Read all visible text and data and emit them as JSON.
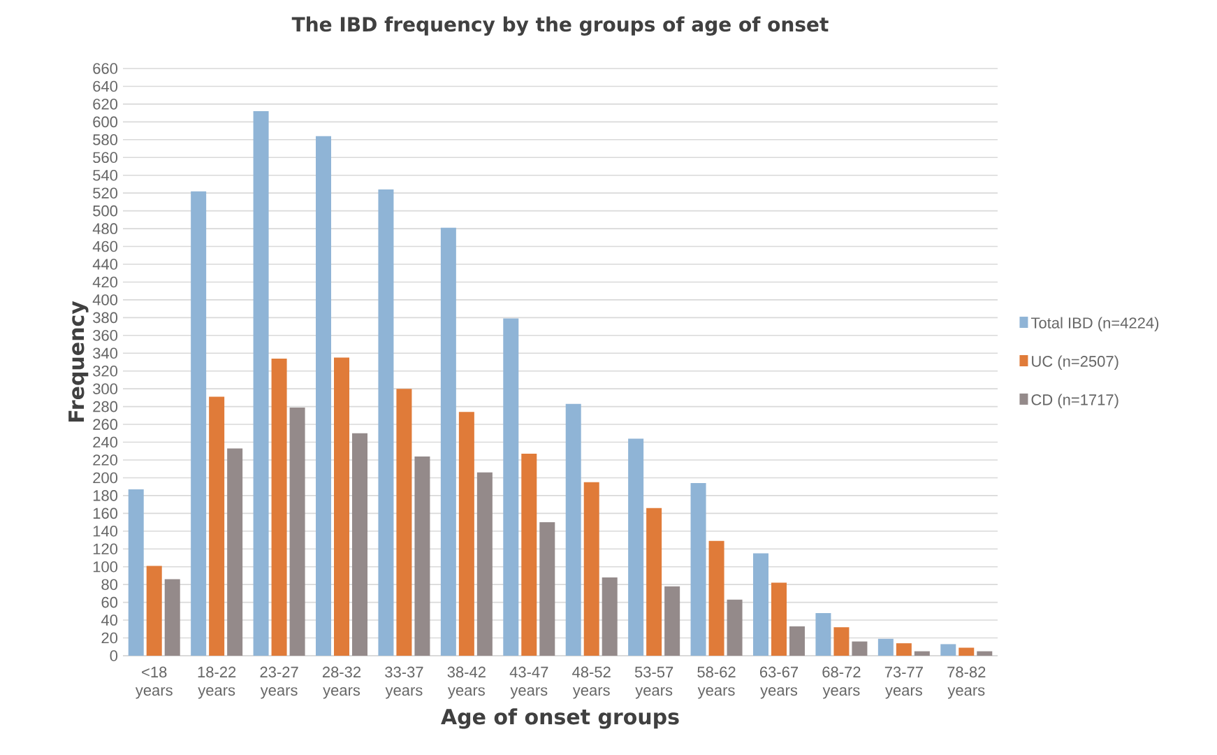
{
  "chart_data": {
    "type": "bar",
    "title": "The IBD frequency by the groups of age of onset",
    "xlabel": "Age of onset groups",
    "ylabel": "Frequency",
    "categories": [
      "<18 years",
      "18-22 years",
      "23-27 years",
      "28-32 years",
      "33-37 years",
      "38-42 years",
      "43-47 years",
      "48-52 years",
      "53-57 years",
      "58-62 years",
      "63-67 years",
      "68-72 years",
      "73-77 years",
      "78-82 years"
    ],
    "series": [
      {
        "name": "Total IBD (n=4224)",
        "color": "#8fb4d6",
        "values": [
          187,
          522,
          612,
          584,
          524,
          481,
          379,
          283,
          244,
          194,
          115,
          48,
          19,
          13
        ]
      },
      {
        "name": "UC (n=2507)",
        "color": "#e07b39",
        "values": [
          101,
          291,
          334,
          335,
          300,
          274,
          227,
          195,
          166,
          129,
          82,
          32,
          14,
          9
        ]
      },
      {
        "name": "CD (n=1717)",
        "color": "#948a8a",
        "values": [
          86,
          233,
          279,
          250,
          224,
          206,
          150,
          88,
          78,
          63,
          33,
          16,
          5,
          5
        ]
      }
    ],
    "ylim": [
      0,
      660
    ],
    "yticks": [
      0,
      20,
      40,
      60,
      80,
      100,
      120,
      140,
      160,
      180,
      200,
      220,
      240,
      260,
      280,
      300,
      320,
      340,
      360,
      380,
      400,
      420,
      440,
      460,
      480,
      500,
      520,
      540,
      560,
      580,
      600,
      620,
      640,
      660
    ],
    "grid": "y",
    "legend": "right"
  }
}
